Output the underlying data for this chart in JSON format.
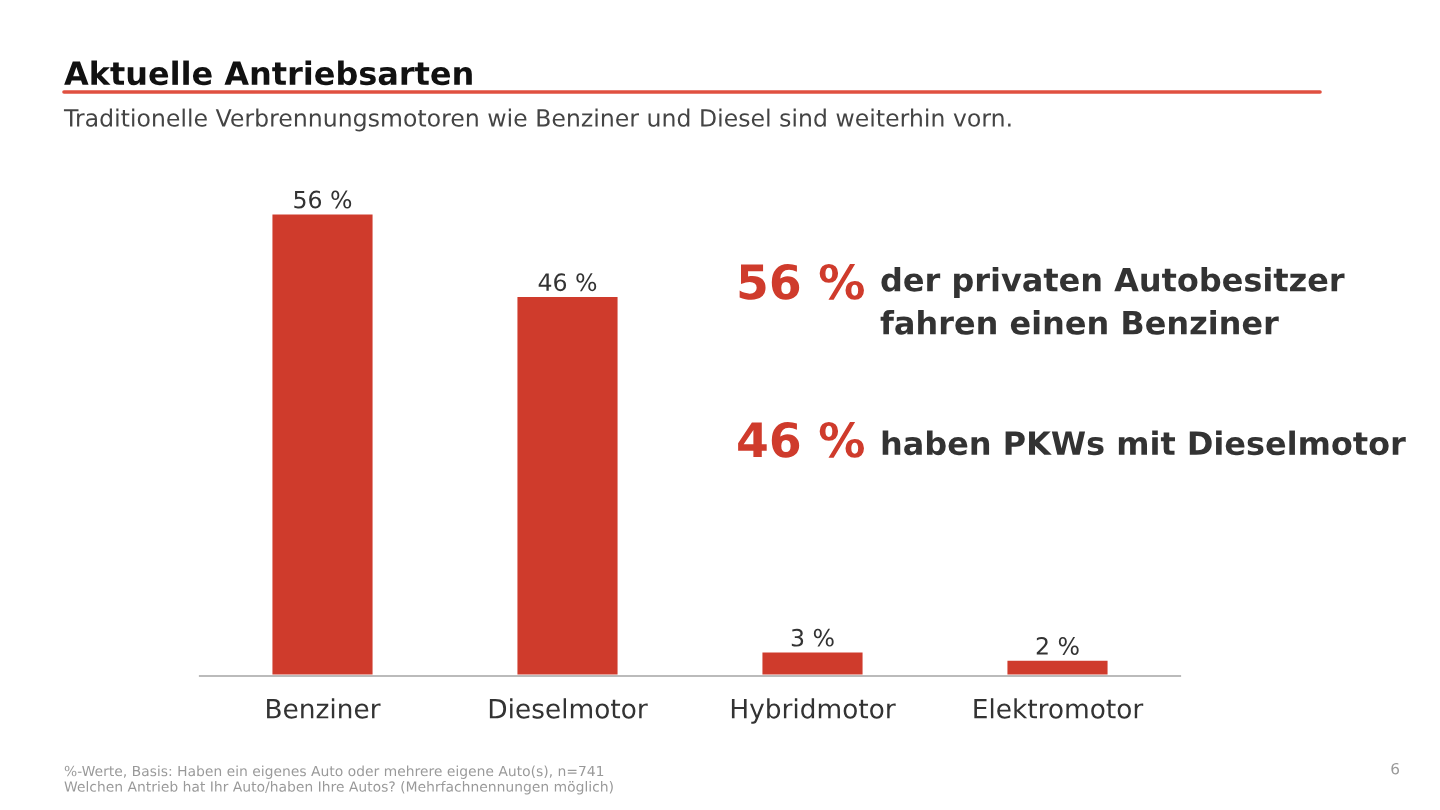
{
  "chart_data": {
    "type": "bar",
    "title": "Aktuelle Antriebsarten",
    "subtitle": "Traditionelle Verbrennungsmotoren wie Benziner und Diesel sind weiterhin vorn.",
    "categories": [
      "Benziner",
      "Dieselmotor",
      "Hybridmotor",
      "Elektromotor"
    ],
    "values": [
      56,
      46,
      3,
      2
    ],
    "value_labels": [
      "56 %",
      "46 %",
      "3 %",
      "2 %"
    ],
    "color": "#cf3b2c",
    "annotations": [
      "56 %",
      "der privaten Autobesitzer\nfahren einen Benziner",
      "46 %",
      "haben PKWs mit Dieselmotor",
      "%-Werte, Basis: Haben ein eigenes Auto oder mehrere eigene Auto(s), n=741\nWelchen Antrieb hat Ihr Auto/haben Ihre Autos? (Mehrfachnennungen möglich)",
      "6"
    ],
    "grid": false,
    "legend": false
  }
}
